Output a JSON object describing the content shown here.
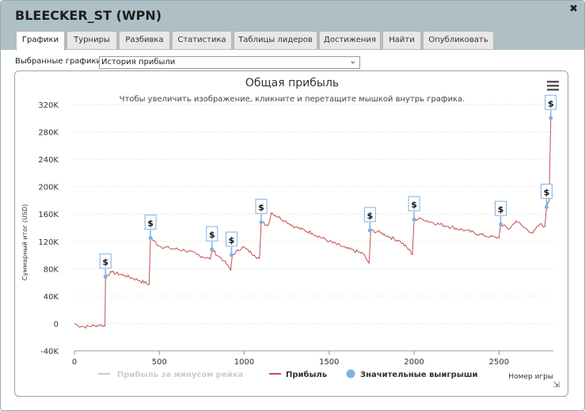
{
  "window": {
    "title": "BLEECKER_ST (WPN)",
    "close_glyph": "✖"
  },
  "tabs": [
    {
      "label": "Графики",
      "active": true
    },
    {
      "label": "Турниры"
    },
    {
      "label": "Разбивка"
    },
    {
      "label": "Статистика"
    },
    {
      "label": "Таблицы лидеров"
    },
    {
      "label": "Достижения"
    },
    {
      "label": "Найти"
    },
    {
      "label": "Опубликовать"
    }
  ],
  "graph_selector": {
    "label": "Выбранные графики:",
    "value": "История прибыли"
  },
  "menu_icon": "hamburger-menu-icon",
  "chart_data": {
    "type": "line",
    "title": "Общая прибыль",
    "subtitle": "Чтобы увеличить изображение, кликните и перетащите мышкой внутрь графика.",
    "xlabel": "Номер игры",
    "ylabel": "Суммарный итог (USD)",
    "xlim": [
      0,
      2820
    ],
    "ylim": [
      -40000,
      320000
    ],
    "x_ticks": [
      "0",
      "500",
      "1000",
      "1500",
      "2000",
      "2500"
    ],
    "y_ticks": [
      "-40K",
      "0",
      "40K",
      "80K",
      "120K",
      "160K",
      "200K",
      "240K",
      "280K",
      "320K"
    ],
    "grid": "horizontal-dotted",
    "legend_position": "bottom",
    "series": [
      {
        "name": "Прибыль за минусом рейка",
        "color": "#c8c8c8",
        "hidden": true,
        "values": []
      },
      {
        "name": "Прибыль",
        "color": "#c0504d",
        "points": [
          [
            0,
            0
          ],
          [
            20,
            -3000
          ],
          [
            60,
            -5000
          ],
          [
            120,
            -3000
          ],
          [
            150,
            -2000
          ],
          [
            180,
            -4000
          ],
          [
            183,
            70000
          ],
          [
            220,
            75000
          ],
          [
            300,
            70000
          ],
          [
            380,
            63000
          ],
          [
            440,
            57000
          ],
          [
            448,
            125000
          ],
          [
            500,
            113000
          ],
          [
            560,
            110000
          ],
          [
            650,
            107000
          ],
          [
            720,
            101000
          ],
          [
            800,
            94000
          ],
          [
            810,
            108000
          ],
          [
            850,
            98000
          ],
          [
            880,
            92000
          ],
          [
            920,
            78000
          ],
          [
            930,
            100000
          ],
          [
            990,
            112000
          ],
          [
            1060,
            100000
          ],
          [
            1090,
            95000
          ],
          [
            1100,
            148000
          ],
          [
            1140,
            143000
          ],
          [
            1160,
            162000
          ],
          [
            1240,
            150000
          ],
          [
            1300,
            141000
          ],
          [
            1400,
            132000
          ],
          [
            1500,
            120000
          ],
          [
            1600,
            110000
          ],
          [
            1700,
            102000
          ],
          [
            1735,
            88000
          ],
          [
            1745,
            136000
          ],
          [
            1800,
            133000
          ],
          [
            1860,
            126000
          ],
          [
            1920,
            120000
          ],
          [
            1980,
            105000
          ],
          [
            1990,
            100000
          ],
          [
            2000,
            152000
          ],
          [
            2050,
            153000
          ],
          [
            2100,
            148000
          ],
          [
            2200,
            142000
          ],
          [
            2300,
            136000
          ],
          [
            2420,
            128000
          ],
          [
            2500,
            125000
          ],
          [
            2510,
            145000
          ],
          [
            2560,
            138000
          ],
          [
            2600,
            150000
          ],
          [
            2650,
            140000
          ],
          [
            2700,
            132000
          ],
          [
            2740,
            145000
          ],
          [
            2770,
            142000
          ],
          [
            2780,
            170000
          ],
          [
            2795,
            178000
          ],
          [
            2805,
            300000
          ]
        ]
      },
      {
        "name": "Значительные выигрыши",
        "color": "#7fb2e5",
        "marker": "$",
        "points": [
          [
            183,
            68000
          ],
          [
            448,
            125000
          ],
          [
            810,
            108000
          ],
          [
            925,
            100000
          ],
          [
            1100,
            148000
          ],
          [
            1740,
            136000
          ],
          [
            2000,
            152000
          ],
          [
            2510,
            145000
          ],
          [
            2780,
            170000
          ],
          [
            2805,
            300000
          ]
        ]
      }
    ]
  }
}
